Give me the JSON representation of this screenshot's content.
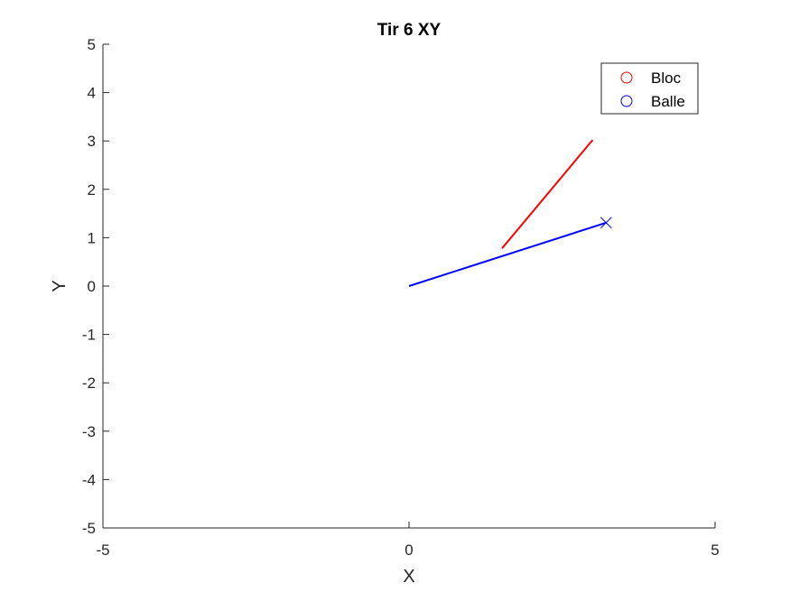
{
  "chart_data": {
    "type": "line",
    "title": "Tir 6 XY",
    "xlabel": "X",
    "ylabel": "Y",
    "xlim": [
      -5,
      5
    ],
    "ylim": [
      -5,
      5
    ],
    "xticks": [
      -5,
      0,
      5
    ],
    "yticks": [
      -5,
      -4,
      -3,
      -2,
      -1,
      0,
      1,
      2,
      3,
      4,
      5
    ],
    "grid": false,
    "legend_position": "top-right",
    "series": [
      {
        "name": "Bloc",
        "color": "#ff0000",
        "legend_marker": "circle",
        "x": [
          1.52,
          3.0
        ],
        "y": [
          0.78,
          3.02
        ]
      },
      {
        "name": "Balle",
        "color": "#0000ff",
        "legend_marker": "circle",
        "end_marker": "x",
        "x": [
          0.0,
          3.22
        ],
        "y": [
          0.0,
          1.31
        ]
      }
    ]
  }
}
